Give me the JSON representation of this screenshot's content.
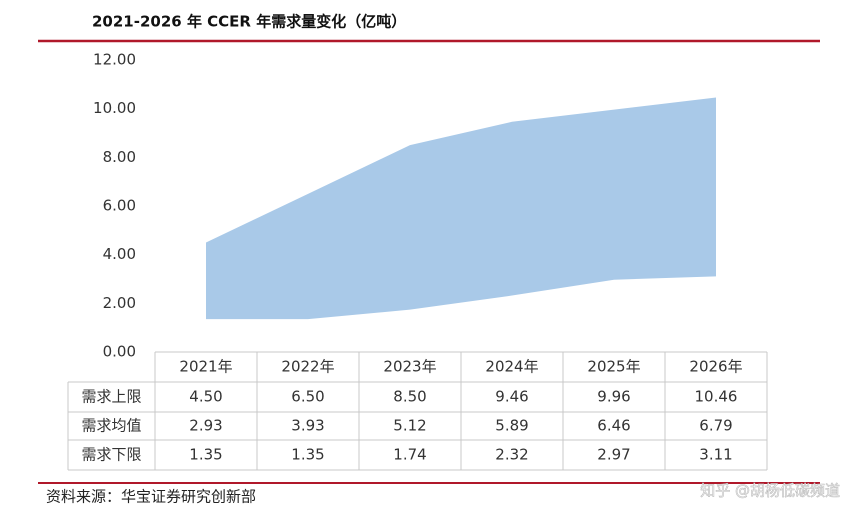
{
  "chart_data": {
    "type": "band-table",
    "title": "2021-2026 年 CCER 年需求量变化（亿吨）",
    "source": "资料来源：华宝证券研究创新部",
    "watermark": "知乎 @胡杨低碳频道",
    "categories": [
      "2021年",
      "2022年",
      "2023年",
      "2024年",
      "2025年",
      "2026年"
    ],
    "color": "#a9c9e8",
    "ylim": [
      0,
      12
    ],
    "yticks": [
      {
        "value": 0,
        "label": "0.00"
      },
      {
        "value": 2,
        "label": "2.00"
      },
      {
        "value": 4,
        "label": "4.00"
      },
      {
        "value": 6,
        "label": "6.00"
      },
      {
        "value": 8,
        "label": "8.00"
      },
      {
        "value": 10,
        "label": "10.00"
      },
      {
        "value": 12,
        "label": "12.00"
      }
    ],
    "series": [
      {
        "name": "需求上限",
        "values": [
          4.5,
          6.5,
          8.5,
          9.46,
          9.96,
          10.46
        ],
        "value_labels": [
          "4.50",
          "6.50",
          "8.50",
          "9.46",
          "9.96",
          "10.46"
        ]
      },
      {
        "name": "需求均值",
        "values": [
          2.93,
          3.93,
          5.12,
          5.89,
          6.46,
          6.79
        ],
        "value_labels": [
          "2.93",
          "3.93",
          "5.12",
          "5.89",
          "6.46",
          "6.79"
        ]
      },
      {
        "name": "需求下限",
        "values": [
          1.35,
          1.35,
          1.74,
          2.32,
          2.97,
          3.11
        ],
        "value_labels": [
          "1.35",
          "1.35",
          "1.74",
          "2.32",
          "2.97",
          "3.11"
        ]
      }
    ]
  }
}
